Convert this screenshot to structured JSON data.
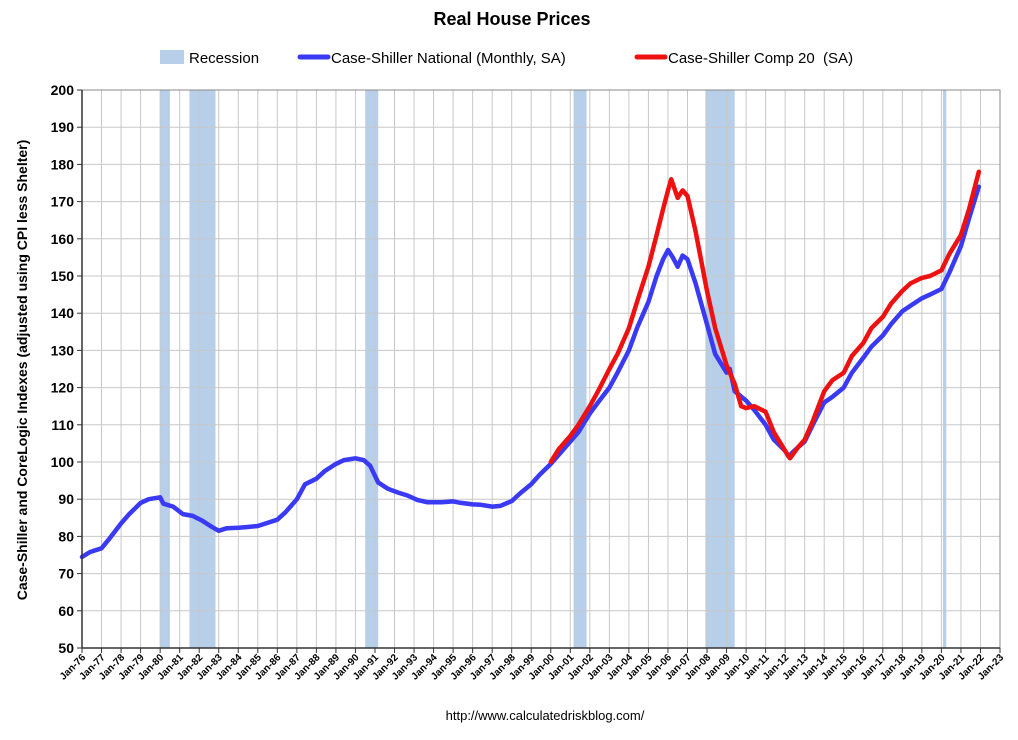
{
  "chart_data": {
    "type": "line",
    "title": "Real House Prices",
    "xlabel": "",
    "ylabel": "Case-Shiller and CoreLogic Indexes (adjusted using CPI less Shelter)",
    "source": "http://www.calculatedriskblog.com/",
    "xlim": [
      "Jan-76",
      "Jan-23"
    ],
    "ylim": [
      50,
      200
    ],
    "y_ticks": [
      50,
      60,
      70,
      80,
      90,
      100,
      110,
      120,
      130,
      140,
      150,
      160,
      170,
      180,
      190,
      200
    ],
    "x_tick_labels": [
      "Jan-76",
      "Jan-77",
      "Jan-78",
      "Jan-79",
      "Jan-80",
      "Jan-81",
      "Jan-82",
      "Jan-83",
      "Jan-84",
      "Jan-85",
      "Jan-86",
      "Jan-87",
      "Jan-88",
      "Jan-89",
      "Jan-90",
      "Jan-91",
      "Jan-92",
      "Jan-93",
      "Jan-94",
      "Jan-95",
      "Jan-96",
      "Jan-97",
      "Jan-98",
      "Jan-99",
      "Jan-00",
      "Jan-01",
      "Jan-02",
      "Jan-03",
      "Jan-04",
      "Jan-05",
      "Jan-06",
      "Jan-07",
      "Jan-08",
      "Jan-09",
      "Jan-10",
      "Jan-11",
      "Jan-12",
      "Jan-13",
      "Jan-14",
      "Jan-15",
      "Jan-16",
      "Jan-17",
      "Jan-18",
      "Jan-19",
      "Jan-20",
      "Jan-21",
      "Jan-22",
      "Jan-23"
    ],
    "grid": true,
    "legend_position": "top",
    "recession_label": "Recession",
    "recession_color": "#b8cfea",
    "recessions": [
      {
        "start": "1980-01",
        "end": "1980-07"
      },
      {
        "start": "1981-07",
        "end": "1982-11"
      },
      {
        "start": "1990-07",
        "end": "1991-03"
      },
      {
        "start": "2001-03",
        "end": "2001-11"
      },
      {
        "start": "2007-12",
        "end": "2009-06"
      },
      {
        "start": "2020-02",
        "end": "2020-04"
      }
    ],
    "series": [
      {
        "name": "Case-Shiller National (Monthly, SA)",
        "color": "#3a3af5",
        "points": [
          [
            "1976-01",
            74.5
          ],
          [
            "1976-06",
            75.8
          ],
          [
            "1977-01",
            76.8
          ],
          [
            "1977-06",
            79.5
          ],
          [
            "1978-01",
            83.5
          ],
          [
            "1978-06",
            86.0
          ],
          [
            "1979-01",
            89.0
          ],
          [
            "1979-06",
            90.0
          ],
          [
            "1980-01",
            90.5
          ],
          [
            "1980-03",
            88.8
          ],
          [
            "1980-09",
            88.0
          ],
          [
            "1981-03",
            86.0
          ],
          [
            "1981-09",
            85.5
          ],
          [
            "1982-03",
            84.2
          ],
          [
            "1982-09",
            82.5
          ],
          [
            "1983-01",
            81.5
          ],
          [
            "1983-06",
            82.2
          ],
          [
            "1984-01",
            82.3
          ],
          [
            "1984-06",
            82.5
          ],
          [
            "1985-01",
            82.8
          ],
          [
            "1985-06",
            83.5
          ],
          [
            "1986-01",
            84.5
          ],
          [
            "1986-06",
            86.5
          ],
          [
            "1987-01",
            90.0
          ],
          [
            "1987-06",
            94.0
          ],
          [
            "1988-01",
            95.5
          ],
          [
            "1988-06",
            97.5
          ],
          [
            "1989-01",
            99.5
          ],
          [
            "1989-06",
            100.5
          ],
          [
            "1990-01",
            101.0
          ],
          [
            "1990-06",
            100.5
          ],
          [
            "1990-10",
            99.0
          ],
          [
            "1991-03",
            94.5
          ],
          [
            "1991-09",
            92.8
          ],
          [
            "1992-03",
            91.8
          ],
          [
            "1992-09",
            91.0
          ],
          [
            "1993-03",
            89.8
          ],
          [
            "1993-09",
            89.2
          ],
          [
            "1994-06",
            89.2
          ],
          [
            "1995-01",
            89.4
          ],
          [
            "1995-06",
            89.0
          ],
          [
            "1996-01",
            88.6
          ],
          [
            "1996-06",
            88.5
          ],
          [
            "1997-01",
            88.0
          ],
          [
            "1997-06",
            88.2
          ],
          [
            "1998-01",
            89.5
          ],
          [
            "1998-06",
            91.5
          ],
          [
            "1999-01",
            94.0
          ],
          [
            "1999-06",
            96.5
          ],
          [
            "2000-01",
            99.5
          ],
          [
            "2000-06",
            102.0
          ],
          [
            "2001-01",
            105.5
          ],
          [
            "2001-06",
            108.0
          ],
          [
            "2002-01",
            113.0
          ],
          [
            "2002-06",
            116.0
          ],
          [
            "2003-01",
            120.0
          ],
          [
            "2003-06",
            124.0
          ],
          [
            "2004-01",
            130.0
          ],
          [
            "2004-06",
            136.0
          ],
          [
            "2005-01",
            143.0
          ],
          [
            "2005-06",
            150.0
          ],
          [
            "2005-10",
            154.5
          ],
          [
            "2006-01",
            157.0
          ],
          [
            "2006-04",
            155.0
          ],
          [
            "2006-07",
            152.5
          ],
          [
            "2006-10",
            155.5
          ],
          [
            "2007-01",
            154.5
          ],
          [
            "2007-06",
            148.0
          ],
          [
            "2008-01",
            137.0
          ],
          [
            "2008-06",
            129.0
          ],
          [
            "2009-01",
            124.0
          ],
          [
            "2009-03",
            125.0
          ],
          [
            "2009-06",
            119.0
          ],
          [
            "2010-01",
            116.5
          ],
          [
            "2010-06",
            114.0
          ],
          [
            "2011-01",
            110.0
          ],
          [
            "2011-06",
            106.0
          ],
          [
            "2012-01",
            103.0
          ],
          [
            "2012-03",
            101.5
          ],
          [
            "2012-09",
            104.0
          ],
          [
            "2013-01",
            105.5
          ],
          [
            "2013-06",
            110.0
          ],
          [
            "2014-01",
            116.0
          ],
          [
            "2014-06",
            117.5
          ],
          [
            "2015-01",
            120.0
          ],
          [
            "2015-06",
            124.0
          ],
          [
            "2016-01",
            128.0
          ],
          [
            "2016-06",
            131.0
          ],
          [
            "2017-01",
            134.0
          ],
          [
            "2017-06",
            137.0
          ],
          [
            "2018-01",
            140.5
          ],
          [
            "2018-06",
            142.0
          ],
          [
            "2019-01",
            144.0
          ],
          [
            "2019-06",
            145.0
          ],
          [
            "2020-01",
            146.5
          ],
          [
            "2020-06",
            151.0
          ],
          [
            "2021-01",
            158.0
          ],
          [
            "2021-06",
            165.5
          ],
          [
            "2021-12",
            174.0
          ]
        ]
      },
      {
        "name": "Case-Shiller Comp 20  (SA)",
        "color": "#ee1111",
        "points": [
          [
            "2000-01",
            100.0
          ],
          [
            "2000-06",
            103.5
          ],
          [
            "2001-01",
            107.0
          ],
          [
            "2001-06",
            110.0
          ],
          [
            "2002-01",
            115.0
          ],
          [
            "2002-06",
            119.0
          ],
          [
            "2003-01",
            125.0
          ],
          [
            "2003-06",
            129.0
          ],
          [
            "2004-01",
            136.0
          ],
          [
            "2004-06",
            143.0
          ],
          [
            "2005-01",
            152.5
          ],
          [
            "2005-06",
            161.0
          ],
          [
            "2005-10",
            168.0
          ],
          [
            "2006-01",
            173.0
          ],
          [
            "2006-03",
            176.0
          ],
          [
            "2006-07",
            171.0
          ],
          [
            "2006-10",
            173.0
          ],
          [
            "2007-01",
            171.5
          ],
          [
            "2007-06",
            162.0
          ],
          [
            "2008-01",
            146.0
          ],
          [
            "2008-06",
            136.0
          ],
          [
            "2009-01",
            126.0
          ],
          [
            "2009-06",
            121.0
          ],
          [
            "2009-10",
            115.0
          ],
          [
            "2010-01",
            114.5
          ],
          [
            "2010-06",
            115.0
          ],
          [
            "2011-01",
            113.5
          ],
          [
            "2011-06",
            108.0
          ],
          [
            "2012-01",
            103.0
          ],
          [
            "2012-04",
            101.0
          ],
          [
            "2012-09",
            104.0
          ],
          [
            "2013-01",
            106.0
          ],
          [
            "2013-06",
            111.0
          ],
          [
            "2014-01",
            119.0
          ],
          [
            "2014-06",
            122.0
          ],
          [
            "2015-01",
            124.0
          ],
          [
            "2015-06",
            128.5
          ],
          [
            "2016-01",
            132.0
          ],
          [
            "2016-06",
            136.0
          ],
          [
            "2017-01",
            139.0
          ],
          [
            "2017-06",
            142.5
          ],
          [
            "2018-01",
            146.0
          ],
          [
            "2018-06",
            148.0
          ],
          [
            "2019-01",
            149.5
          ],
          [
            "2019-06",
            150.0
          ],
          [
            "2020-01",
            151.5
          ],
          [
            "2020-06",
            156.0
          ],
          [
            "2021-01",
            161.0
          ],
          [
            "2021-06",
            168.0
          ],
          [
            "2021-12",
            178.0
          ]
        ]
      }
    ]
  }
}
